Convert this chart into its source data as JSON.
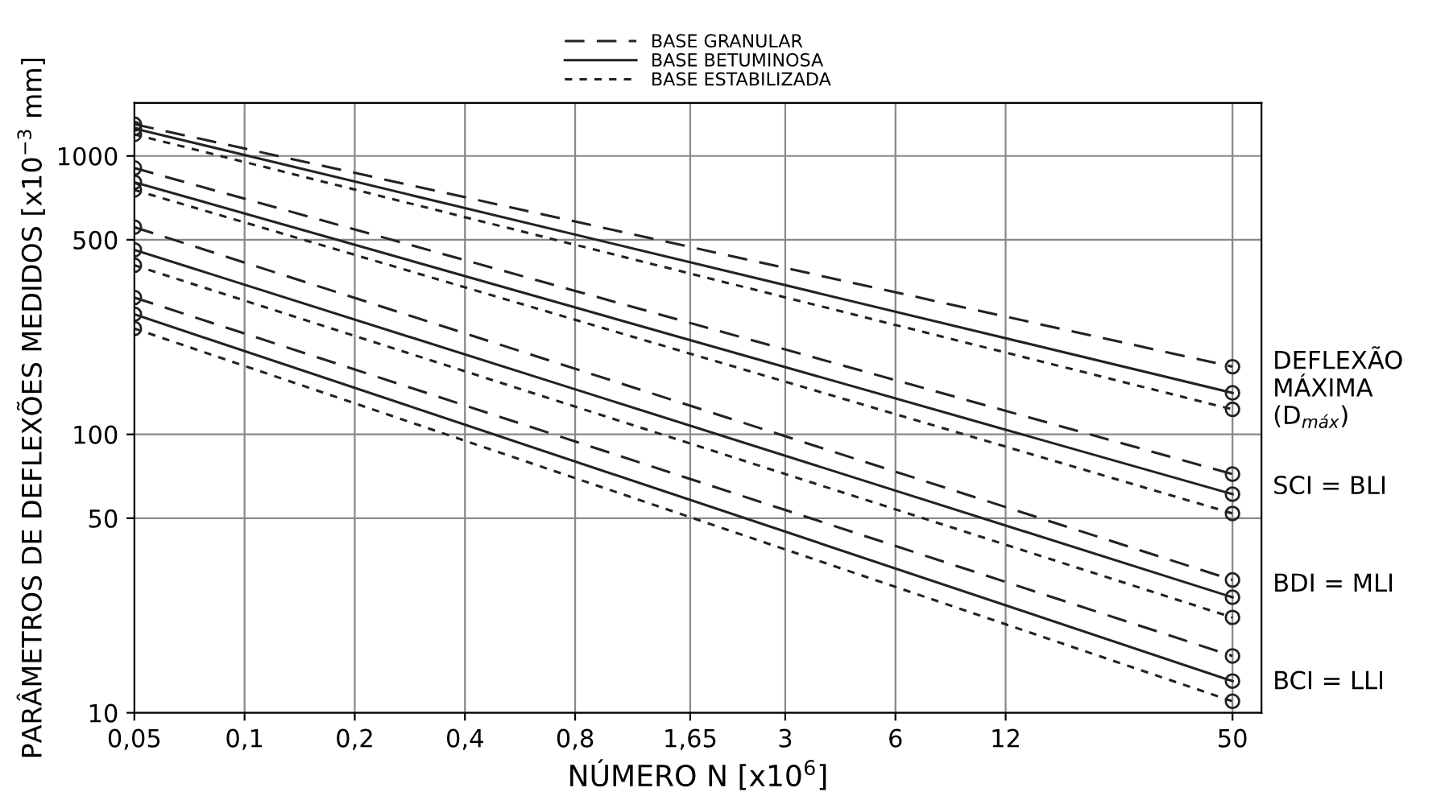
{
  "chart_data": {
    "type": "line",
    "log": "xy",
    "xlabel": "NÚMERO N [x10$^{6}$]",
    "ylabel": "PARÂMETROS DE DEFLEXÕES MEDIDOS [x10$^{−3}$ mm]",
    "x": [
      0.05,
      50
    ],
    "xlim": [
      0.05,
      60
    ],
    "ylim": [
      10,
      1550
    ],
    "xticks": [
      {
        "value": 0.05,
        "label": "0,05"
      },
      {
        "value": 0.1,
        "label": "0,1"
      },
      {
        "value": 0.2,
        "label": "0,2"
      },
      {
        "value": 0.4,
        "label": "0,4"
      },
      {
        "value": 0.8,
        "label": "0,8"
      },
      {
        "value": 1.65,
        "label": "1,65"
      },
      3,
      6,
      12,
      50
    ],
    "yticks": [
      10,
      50,
      100,
      500,
      1000
    ],
    "grid": true,
    "legend": "top",
    "marker": "circle",
    "series": [
      {
        "name": "BASE GRANULAR",
        "color": "#222222",
        "line_style": "dashed",
        "values": [
          1300,
          175
        ]
      },
      {
        "name": "BASE BETUMINOSA",
        "color": "#222222",
        "line_style": "solid",
        "values": [
          1255,
          141
        ]
      },
      {
        "name": "BASE ESTABILIZADA",
        "color": "#222222",
        "line_style": "dotted",
        "values": [
          1195,
          123
        ]
      },
      {
        "color": "#222222",
        "line_style": "dashed",
        "values": [
          905,
          72
        ]
      },
      {
        "color": "#222222",
        "line_style": "solid",
        "values": [
          805,
          61
        ]
      },
      {
        "color": "#222222",
        "line_style": "dotted",
        "values": [
          755,
          52
        ]
      },
      {
        "color": "#222222",
        "line_style": "dashed",
        "values": [
          555,
          30
        ]
      },
      {
        "color": "#222222",
        "line_style": "solid",
        "values": [
          460,
          26
        ]
      },
      {
        "color": "#222222",
        "line_style": "dotted",
        "values": [
          405,
          22
        ]
      },
      {
        "color": "#222222",
        "line_style": "dashed",
        "values": [
          310,
          16
        ]
      },
      {
        "color": "#222222",
        "line_style": "solid",
        "values": [
          270,
          13
        ]
      },
      {
        "color": "#222222",
        "line_style": "dotted",
        "values": [
          240,
          11
        ]
      }
    ],
    "annotations": [
      "DEFLEXÃO\nMÁXIMA\n(D$_{máx}$)",
      "SCI = BLI",
      "BDI = MLI",
      "BCI = LLI"
    ]
  }
}
